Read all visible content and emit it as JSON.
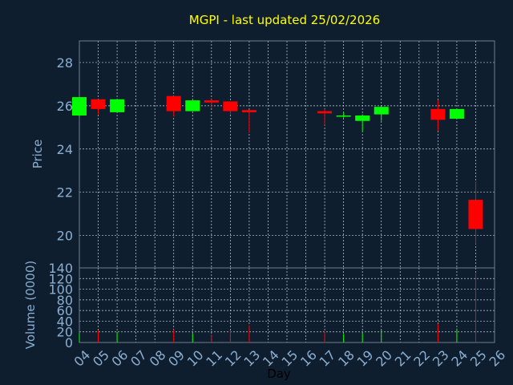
{
  "chart_data": {
    "type": "candlestick",
    "title": "MGPI - last updated 25/02/2026",
    "xlabel": "Day",
    "price": {
      "ylabel": "Price",
      "ylim": [
        18.5,
        29
      ],
      "yticks": [
        "20",
        "22",
        "24",
        "26",
        "28"
      ],
      "ytick_values": [
        20,
        22,
        24,
        26,
        28
      ]
    },
    "volume": {
      "ylabel": "Volume (0000)",
      "ylim": [
        0,
        140
      ],
      "yticks": [
        "0",
        "20",
        "40",
        "60",
        "80",
        "100",
        "120",
        "140"
      ],
      "ytick_values": [
        0,
        20,
        40,
        60,
        80,
        100,
        120,
        140
      ]
    },
    "days": [
      "04",
      "05",
      "06",
      "07",
      "08",
      "09",
      "10",
      "11",
      "12",
      "13",
      "14",
      "15",
      "16",
      "17",
      "18",
      "19",
      "20",
      "21",
      "22",
      "23",
      "24",
      "25",
      "26"
    ],
    "candles": [
      {
        "day": "04",
        "open": 25.55,
        "high": 26.4,
        "low": 25.5,
        "close": 26.4,
        "volume": 18
      },
      {
        "day": "05",
        "open": 26.3,
        "high": 26.3,
        "low": 25.6,
        "close": 25.85,
        "volume": 22
      },
      {
        "day": "06",
        "open": 25.7,
        "high": 26.3,
        "low": 25.7,
        "close": 26.3,
        "volume": 20
      },
      {
        "day": "09",
        "open": 26.45,
        "high": 26.45,
        "low": 25.5,
        "close": 25.75,
        "volume": 24
      },
      {
        "day": "10",
        "open": 25.75,
        "high": 26.25,
        "low": 25.75,
        "close": 26.25,
        "volume": 17
      },
      {
        "day": "11",
        "open": 26.25,
        "high": 26.3,
        "low": 25.9,
        "close": 26.15,
        "volume": 15
      },
      {
        "day": "12",
        "open": 26.2,
        "high": 26.2,
        "low": 25.6,
        "close": 25.75,
        "volume": 22
      },
      {
        "day": "13",
        "open": 25.8,
        "high": 25.8,
        "low": 24.75,
        "close": 25.7,
        "volume": 32
      },
      {
        "day": "17",
        "open": 25.75,
        "high": 25.85,
        "low": 25.1,
        "close": 25.65,
        "volume": 20
      },
      {
        "day": "18",
        "open": 25.5,
        "high": 25.7,
        "low": 25.45,
        "close": 25.55,
        "volume": 16
      },
      {
        "day": "19",
        "open": 25.3,
        "high": 25.6,
        "low": 24.8,
        "close": 25.55,
        "volume": 18
      },
      {
        "day": "20",
        "open": 25.6,
        "high": 25.95,
        "low": 25.3,
        "close": 25.95,
        "volume": 24
      },
      {
        "day": "23",
        "open": 25.85,
        "high": 26.25,
        "low": 24.85,
        "close": 25.35,
        "volume": 35
      },
      {
        "day": "24",
        "open": 25.4,
        "high": 25.85,
        "low": 25.4,
        "close": 25.85,
        "volume": 26
      },
      {
        "day": "25",
        "open": 21.65,
        "high": 22.5,
        "low": 19.6,
        "close": 20.3,
        "volume": 130
      }
    ],
    "colors": {
      "up": "#00ff00",
      "down": "#ff0000",
      "background": "#0f1e2e",
      "title": "#ffff00",
      "axis_text": "#8aaed0",
      "grid": "#c8d2dc"
    },
    "grid": true
  }
}
